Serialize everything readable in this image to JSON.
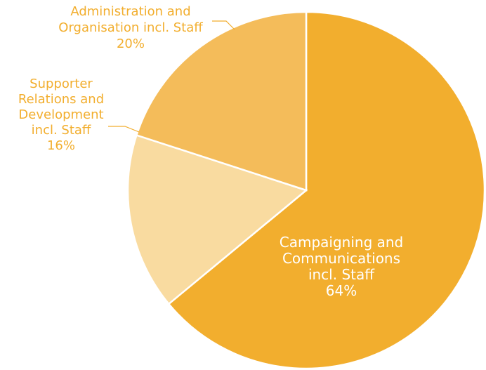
{
  "chart_data": {
    "type": "pie",
    "slices": [
      {
        "label_lines": [
          "Campaigning and",
          "Communications",
          "incl. Staff"
        ],
        "value": 64,
        "value_label": "64%",
        "color": "#F2AE2E",
        "label_color": "#FFFFFF"
      },
      {
        "label_lines": [
          "Supporter",
          "Relations and",
          "Development",
          "incl. Staff"
        ],
        "value": 16,
        "value_label": "16%",
        "color": "#F9DBA0",
        "label_color": "#F2AE2E"
      },
      {
        "label_lines": [
          "Administration and",
          "Organisation incl. Staff"
        ],
        "value": 20,
        "value_label": "20%",
        "color": "#F4BC5A",
        "label_color": "#F2AE2E"
      }
    ]
  }
}
